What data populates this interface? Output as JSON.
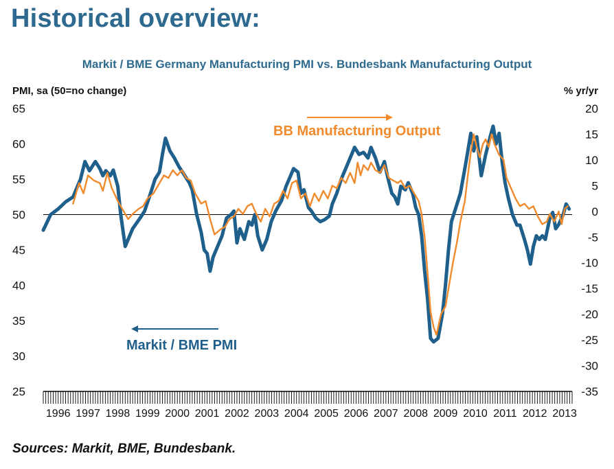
{
  "page": {
    "title": "Historical overview:",
    "source": "Sources: Markit, BME, Bundesbank."
  },
  "colors": {
    "pmi": "#1f5f8b",
    "output": "#f08a2c",
    "title": "#2e6a8f"
  },
  "chart_data": {
    "type": "line",
    "title": "Markit / BME Germany Manufacturing PMI vs. Bundesbank Manufacturing Output",
    "ylabel_left": "PMI, sa (50=no change)",
    "ylabel_right": "% yr/yr",
    "ylim_left": [
      25,
      65
    ],
    "ylim_right": [
      -35,
      20
    ],
    "yticks_left": [
      "65",
      "60",
      "55",
      "50",
      "45",
      "40",
      "35",
      "30",
      "25"
    ],
    "yticks_right": [
      "20",
      "15",
      "10",
      "5",
      "0",
      "-5",
      "-10",
      "-15",
      "-20",
      "-25",
      "-30",
      "-35"
    ],
    "xlim": [
      1996.0,
      2013.75
    ],
    "xticks": [
      "1996",
      "1997",
      "1998",
      "1999",
      "2000",
      "2001",
      "2002",
      "2003",
      "2004",
      "2005",
      "2006",
      "2007",
      "2008",
      "2009",
      "2010",
      "2011",
      "2012",
      "2013"
    ],
    "reference_line": {
      "axis": "left",
      "value": 50
    },
    "grid": false,
    "annotations": [
      {
        "text": "BB Manufacturing Output",
        "series": "output",
        "arrow": "right"
      },
      {
        "text": "Markit / BME PMI",
        "series": "pmi",
        "arrow": "left"
      }
    ],
    "series": [
      {
        "id": "pmi",
        "name": "Markit / BME PMI",
        "axis": "left",
        "points": [
          [
            1996.0,
            47.8
          ],
          [
            1996.25,
            50.0
          ],
          [
            1996.5,
            50.8
          ],
          [
            1996.75,
            51.8
          ],
          [
            1997.0,
            52.5
          ],
          [
            1997.25,
            55.0
          ],
          [
            1997.4,
            57.5
          ],
          [
            1997.55,
            56.2
          ],
          [
            1997.75,
            57.5
          ],
          [
            1997.9,
            56.5
          ],
          [
            1998.0,
            55.5
          ],
          [
            1998.1,
            56.2
          ],
          [
            1998.25,
            55.5
          ],
          [
            1998.35,
            56.3
          ],
          [
            1998.5,
            54.0
          ],
          [
            1998.6,
            50.0
          ],
          [
            1998.75,
            45.5
          ],
          [
            1998.9,
            47.0
          ],
          [
            1999.0,
            48.0
          ],
          [
            1999.25,
            49.5
          ],
          [
            1999.4,
            50.5
          ],
          [
            1999.6,
            53.0
          ],
          [
            1999.75,
            55.0
          ],
          [
            1999.9,
            56.0
          ],
          [
            2000.0,
            58.5
          ],
          [
            2000.1,
            60.8
          ],
          [
            2000.25,
            59.0
          ],
          [
            2000.4,
            58.0
          ],
          [
            2000.55,
            56.8
          ],
          [
            2000.75,
            55.5
          ],
          [
            2000.9,
            54.5
          ],
          [
            2001.0,
            53.5
          ],
          [
            2001.15,
            50.0
          ],
          [
            2001.3,
            47.5
          ],
          [
            2001.4,
            45.0
          ],
          [
            2001.5,
            44.5
          ],
          [
            2001.6,
            42.0
          ],
          [
            2001.7,
            44.0
          ],
          [
            2001.85,
            45.5
          ],
          [
            2002.0,
            47.0
          ],
          [
            2002.15,
            49.5
          ],
          [
            2002.3,
            50.0
          ],
          [
            2002.4,
            50.5
          ],
          [
            2002.5,
            46.0
          ],
          [
            2002.6,
            48.0
          ],
          [
            2002.75,
            46.5
          ],
          [
            2002.9,
            49.0
          ],
          [
            2003.0,
            48.5
          ],
          [
            2003.1,
            50.0
          ],
          [
            2003.2,
            47.0
          ],
          [
            2003.35,
            45.0
          ],
          [
            2003.5,
            46.5
          ],
          [
            2003.65,
            49.0
          ],
          [
            2003.8,
            50.5
          ],
          [
            2004.0,
            52.0
          ],
          [
            2004.15,
            54.0
          ],
          [
            2004.3,
            55.5
          ],
          [
            2004.4,
            56.5
          ],
          [
            2004.55,
            56.0
          ],
          [
            2004.65,
            53.0
          ],
          [
            2004.75,
            53.5
          ],
          [
            2004.9,
            51.0
          ],
          [
            2005.0,
            50.5
          ],
          [
            2005.15,
            49.5
          ],
          [
            2005.3,
            49.0
          ],
          [
            2005.45,
            49.3
          ],
          [
            2005.6,
            49.8
          ],
          [
            2005.7,
            51.5
          ],
          [
            2005.85,
            53.0
          ],
          [
            2006.0,
            55.0
          ],
          [
            2006.15,
            56.5
          ],
          [
            2006.3,
            58.0
          ],
          [
            2006.45,
            59.5
          ],
          [
            2006.6,
            58.5
          ],
          [
            2006.75,
            58.8
          ],
          [
            2006.9,
            58.0
          ],
          [
            2007.0,
            59.5
          ],
          [
            2007.15,
            58.0
          ],
          [
            2007.3,
            56.0
          ],
          [
            2007.45,
            57.5
          ],
          [
            2007.55,
            55.5
          ],
          [
            2007.7,
            53.0
          ],
          [
            2007.8,
            52.5
          ],
          [
            2007.9,
            51.5
          ],
          [
            2008.0,
            54.0
          ],
          [
            2008.15,
            53.5
          ],
          [
            2008.25,
            54.5
          ],
          [
            2008.4,
            53.0
          ],
          [
            2008.5,
            51.0
          ],
          [
            2008.6,
            50.0
          ],
          [
            2008.7,
            47.0
          ],
          [
            2008.8,
            42.0
          ],
          [
            2008.9,
            38.0
          ],
          [
            2009.0,
            32.5
          ],
          [
            2009.1,
            32.0
          ],
          [
            2009.25,
            32.5
          ],
          [
            2009.4,
            36.0
          ],
          [
            2009.5,
            40.0
          ],
          [
            2009.6,
            45.0
          ],
          [
            2009.7,
            49.0
          ],
          [
            2009.85,
            51.0
          ],
          [
            2010.0,
            53.0
          ],
          [
            2010.15,
            56.5
          ],
          [
            2010.25,
            59.0
          ],
          [
            2010.35,
            61.5
          ],
          [
            2010.45,
            59.0
          ],
          [
            2010.55,
            61.0
          ],
          [
            2010.7,
            55.5
          ],
          [
            2010.85,
            58.5
          ],
          [
            2011.0,
            61.0
          ],
          [
            2011.1,
            62.5
          ],
          [
            2011.2,
            60.0
          ],
          [
            2011.3,
            61.5
          ],
          [
            2011.4,
            57.5
          ],
          [
            2011.5,
            54.5
          ],
          [
            2011.6,
            52.5
          ],
          [
            2011.75,
            50.0
          ],
          [
            2011.9,
            48.5
          ],
          [
            2012.0,
            48.5
          ],
          [
            2012.15,
            46.5
          ],
          [
            2012.25,
            45.0
          ],
          [
            2012.35,
            43.0
          ],
          [
            2012.45,
            45.5
          ],
          [
            2012.55,
            47.0
          ],
          [
            2012.65,
            46.5
          ],
          [
            2012.75,
            47.0
          ],
          [
            2012.85,
            46.5
          ],
          [
            2013.0,
            49.5
          ],
          [
            2013.1,
            50.3
          ],
          [
            2013.2,
            48.0
          ],
          [
            2013.3,
            48.6
          ],
          [
            2013.45,
            50.0
          ],
          [
            2013.55,
            51.5
          ],
          [
            2013.65,
            50.8
          ]
        ]
      },
      {
        "id": "output",
        "name": "BB Manufacturing Output",
        "axis": "right",
        "points": [
          [
            1997.0,
            1.5
          ],
          [
            1997.2,
            5.5
          ],
          [
            1997.35,
            3.5
          ],
          [
            1997.5,
            7.0
          ],
          [
            1997.7,
            6.0
          ],
          [
            1997.9,
            5.5
          ],
          [
            1998.0,
            4.0
          ],
          [
            1998.15,
            7.5
          ],
          [
            1998.3,
            4.5
          ],
          [
            1998.5,
            2.0
          ],
          [
            1998.7,
            0.0
          ],
          [
            1998.85,
            -1.5
          ],
          [
            1999.0,
            -0.5
          ],
          [
            1999.2,
            0.5
          ],
          [
            1999.35,
            1.0
          ],
          [
            1999.5,
            2.5
          ],
          [
            1999.7,
            3.5
          ],
          [
            1999.9,
            5.5
          ],
          [
            2000.05,
            7.0
          ],
          [
            2000.2,
            6.5
          ],
          [
            2000.35,
            8.0
          ],
          [
            2000.5,
            7.0
          ],
          [
            2000.65,
            8.0
          ],
          [
            2000.8,
            6.5
          ],
          [
            2000.95,
            6.0
          ],
          [
            2001.1,
            3.5
          ],
          [
            2001.3,
            1.5
          ],
          [
            2001.45,
            2.0
          ],
          [
            2001.6,
            -1.5
          ],
          [
            2001.75,
            -4.5
          ],
          [
            2001.95,
            -3.5
          ],
          [
            2002.1,
            -3.0
          ],
          [
            2002.25,
            -1.5
          ],
          [
            2002.4,
            -1.0
          ],
          [
            2002.55,
            0.5
          ],
          [
            2002.7,
            -0.5
          ],
          [
            2002.85,
            1.0
          ],
          [
            2003.0,
            1.5
          ],
          [
            2003.15,
            -0.5
          ],
          [
            2003.3,
            -2.0
          ],
          [
            2003.45,
            0.5
          ],
          [
            2003.6,
            -1.0
          ],
          [
            2003.75,
            1.5
          ],
          [
            2003.9,
            2.0
          ],
          [
            2004.05,
            4.0
          ],
          [
            2004.2,
            2.5
          ],
          [
            2004.35,
            5.5
          ],
          [
            2004.5,
            6.0
          ],
          [
            2004.65,
            2.5
          ],
          [
            2004.8,
            3.5
          ],
          [
            2004.95,
            1.0
          ],
          [
            2005.1,
            3.5
          ],
          [
            2005.25,
            2.0
          ],
          [
            2005.4,
            4.0
          ],
          [
            2005.55,
            2.5
          ],
          [
            2005.7,
            5.0
          ],
          [
            2005.85,
            4.5
          ],
          [
            2006.0,
            6.5
          ],
          [
            2006.15,
            5.5
          ],
          [
            2006.3,
            7.5
          ],
          [
            2006.45,
            5.5
          ],
          [
            2006.55,
            9.5
          ],
          [
            2006.65,
            7.0
          ],
          [
            2006.75,
            9.0
          ],
          [
            2006.9,
            8.0
          ],
          [
            2007.0,
            9.5
          ],
          [
            2007.15,
            8.0
          ],
          [
            2007.3,
            7.5
          ],
          [
            2007.45,
            9.0
          ],
          [
            2007.6,
            6.5
          ],
          [
            2007.75,
            6.0
          ],
          [
            2007.9,
            5.5
          ],
          [
            2008.0,
            6.0
          ],
          [
            2008.15,
            4.5
          ],
          [
            2008.3,
            5.0
          ],
          [
            2008.45,
            3.5
          ],
          [
            2008.6,
            2.0
          ],
          [
            2008.7,
            -0.5
          ],
          [
            2008.8,
            -5.0
          ],
          [
            2008.9,
            -12.0
          ],
          [
            2009.0,
            -19.5
          ],
          [
            2009.1,
            -22.5
          ],
          [
            2009.2,
            -24.0
          ],
          [
            2009.35,
            -20.0
          ],
          [
            2009.5,
            -18.5
          ],
          [
            2009.6,
            -15.0
          ],
          [
            2009.75,
            -10.0
          ],
          [
            2009.9,
            -5.5
          ],
          [
            2010.0,
            -2.0
          ],
          [
            2010.15,
            2.0
          ],
          [
            2010.25,
            7.0
          ],
          [
            2010.35,
            11.5
          ],
          [
            2010.45,
            15.0
          ],
          [
            2010.55,
            12.5
          ],
          [
            2010.65,
            10.5
          ],
          [
            2010.75,
            13.0
          ],
          [
            2010.85,
            14.0
          ],
          [
            2010.95,
            12.5
          ],
          [
            2011.05,
            15.0
          ],
          [
            2011.15,
            13.0
          ],
          [
            2011.3,
            11.0
          ],
          [
            2011.45,
            10.0
          ],
          [
            2011.55,
            6.5
          ],
          [
            2011.7,
            4.5
          ],
          [
            2011.85,
            2.5
          ],
          [
            2012.0,
            1.0
          ],
          [
            2012.15,
            1.5
          ],
          [
            2012.3,
            0.5
          ],
          [
            2012.45,
            1.0
          ],
          [
            2012.6,
            -1.0
          ],
          [
            2012.75,
            -2.5
          ],
          [
            2012.9,
            -2.0
          ],
          [
            2013.0,
            -0.5
          ],
          [
            2013.15,
            -2.0
          ],
          [
            2013.3,
            0.0
          ],
          [
            2013.4,
            -2.5
          ],
          [
            2013.5,
            0.5
          ],
          [
            2013.6,
            1.0
          ]
        ]
      }
    ]
  }
}
